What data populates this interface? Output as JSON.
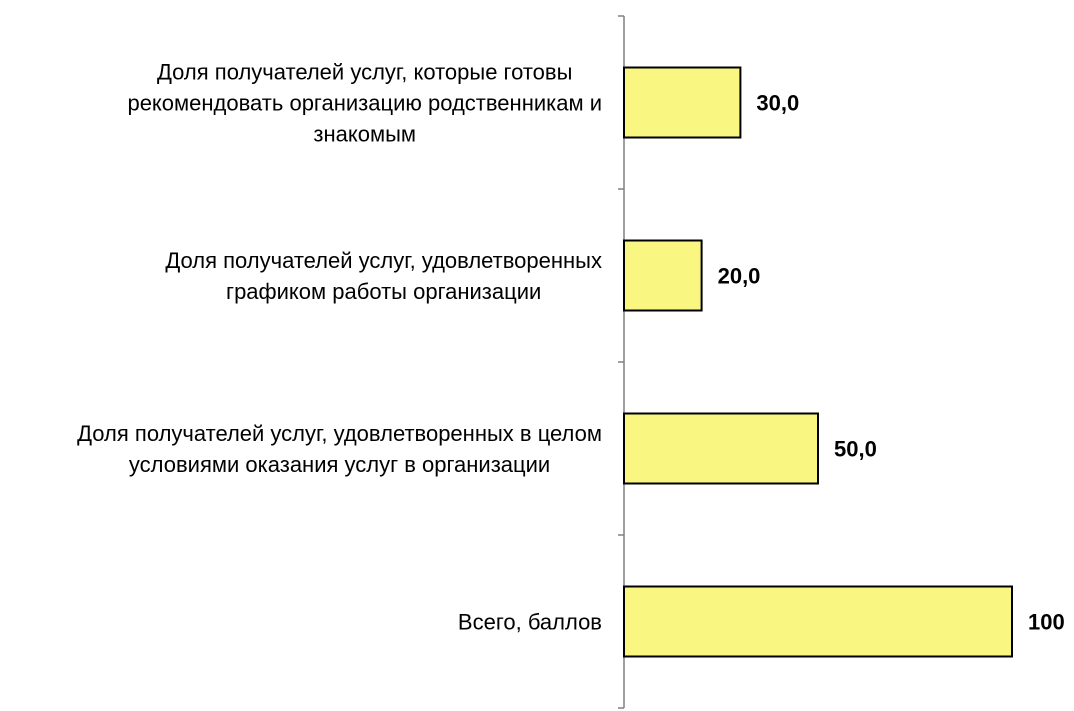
{
  "chart_data": {
    "type": "bar",
    "orientation": "horizontal",
    "title": "",
    "xlabel": "",
    "ylabel": "",
    "categories": [
      "Доля получателей услуг, которые готовы рекомендовать организацию родственникам и знакомым",
      "Доля получателей услуг, удовлетворенных графиком работы организации",
      "Доля получателей услуг, удовлетворенных в целом условиями оказания услуг в организации",
      "Всего, баллов"
    ],
    "category_lines": [
      [
        "Доля получателей услуг, которые готовы",
        "рекомендовать организацию родственникам и",
        "знакомым"
      ],
      [
        "Доля получателей услуг, удовлетворенных",
        "графиком работы организации"
      ],
      [
        "Доля получателей услуг, удовлетворенных в целом",
        "условиями оказания услуг в организации"
      ],
      [
        "Всего, баллов"
      ]
    ],
    "values": [
      30,
      20,
      50,
      100
    ],
    "value_labels": [
      "30,0",
      "20,0",
      "50,0",
      "100"
    ],
    "xlim": [
      0,
      100
    ],
    "grid": false,
    "legend": "none",
    "bar_color": "#FAF682",
    "bar_edge_color": "#000000",
    "axis_color": "#808080"
  }
}
